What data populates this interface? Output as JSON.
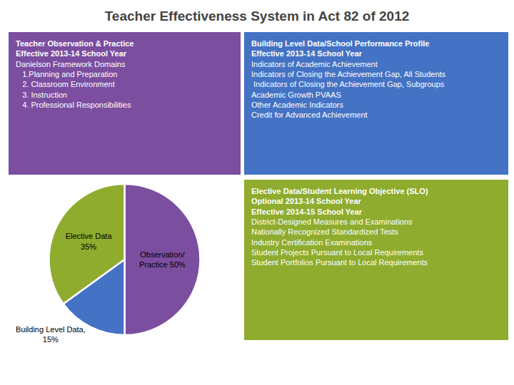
{
  "chart_data": {
    "type": "pie",
    "title": "Teacher Effectiveness System in Act 82 of 2012",
    "values": [
      50,
      35,
      15
    ],
    "value_labels": [
      "Observation/\nPractice 50%",
      "Elective Data\n35%",
      "Building Level Data,\n15%"
    ],
    "colors": [
      "#7b4ea0",
      "#8fac2e",
      "#4472c4"
    ],
    "data_labels": true,
    "annotations": [
      {
        "color": "#7b4ea0",
        "heading": [
          "Teacher Observation & Practice",
          "Effective 2013-14 School Year"
        ],
        "lines": [
          "Danielson Framework Domains",
          "   1.Planning and Preparation",
          "   2. Classroom Environment",
          "   3. Instruction",
          "   4. Professional Responsibilities"
        ]
      },
      {
        "color": "#4472c4",
        "heading": [
          "Building Level Data/School Performance Profile",
          "Effective 2013-14 School Year"
        ],
        "lines": [
          "Indicators of Academic Achievement",
          "Indicators of Closing the Achievement Gap, All Students",
          " Indicators of Closing the Achievement Gap, Subgroups",
          "Academic Growth PVAAS",
          "Other Academic Indicators",
          "Credit for Advanced Achievement"
        ]
      },
      {
        "color": "#8fac2e",
        "heading": [
          "Elective Data/Student Learning Objective (SLO)",
          "Optional 2013-14 School Year",
          "Effective 2014-15 School Year"
        ],
        "lines": [
          "District-Designed Measures and Examinations",
          "Nationally Recognized Standardized Tests",
          "Industry Certification Examinations",
          "Student Projects Pursuant to Local Requirements",
          "Student Portfolios Pursuant to Local Requirements"
        ]
      }
    ]
  }
}
